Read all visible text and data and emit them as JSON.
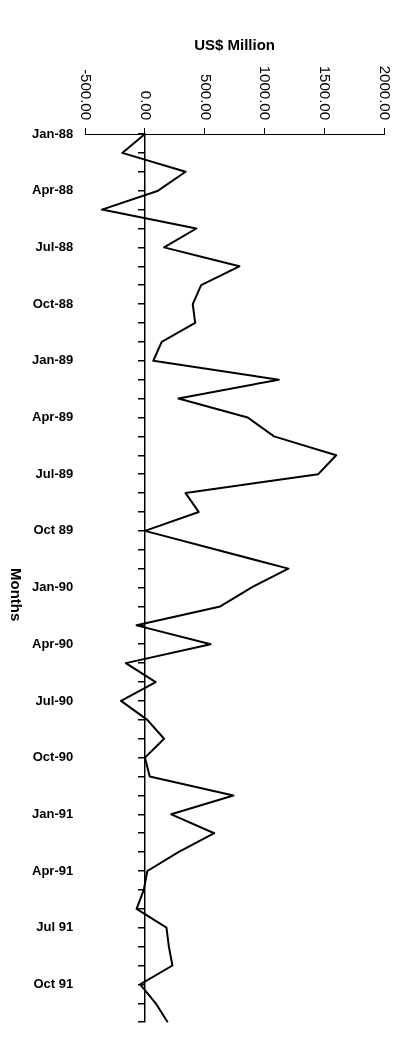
{
  "chart_data": {
    "type": "line",
    "orientation": "horizontal",
    "xlabel": "US$ Million",
    "ylabel": "Months",
    "categories": [
      "Jan-88",
      null,
      null,
      "Apr-88",
      null,
      null,
      "Jul-88",
      null,
      null,
      "Oct-88",
      null,
      null,
      "Jan-89",
      null,
      null,
      "Apr-89",
      null,
      null,
      "Jul-89",
      null,
      null,
      "Oct 89",
      null,
      null,
      "Jan-90",
      null,
      null,
      "Apr-90",
      null,
      null,
      "Jul-90",
      null,
      null,
      "Oct-90",
      null,
      null,
      "Jan-91",
      null,
      null,
      "Apr-91",
      null,
      null,
      "Jul 91",
      null,
      null,
      "Oct 91",
      null,
      null
    ],
    "series": [
      {
        "color": "#000000",
        "values": [
          0,
          -190,
          340,
          110,
          -360,
          430,
          160,
          790,
          470,
          400,
          420,
          140,
          70,
          1120,
          280,
          860,
          1080,
          1600,
          1450,
          340,
          450,
          0,
          600,
          1200,
          890,
          630,
          -70,
          550,
          -160,
          90,
          -200,
          20,
          160,
          0,
          40,
          740,
          220,
          580,
          280,
          20,
          -10,
          -70,
          180,
          200,
          230,
          -40,
          90,
          190
        ]
      }
    ],
    "xlim": [
      -500,
      2000
    ],
    "xticks": [
      {
        "value": -500,
        "label": "-500.00"
      },
      {
        "value": 0,
        "label": "0.00"
      },
      {
        "value": 500,
        "label": "500.00"
      },
      {
        "value": 1000,
        "label": "1000.00"
      },
      {
        "value": 1500,
        "label": "1500.00"
      },
      {
        "value": 2000,
        "label": "2000.00"
      }
    ],
    "ref_lines": [
      {
        "axis": "x",
        "value": 0
      }
    ],
    "grid": false,
    "legend": false,
    "marker": "none",
    "line_style": "solid"
  }
}
